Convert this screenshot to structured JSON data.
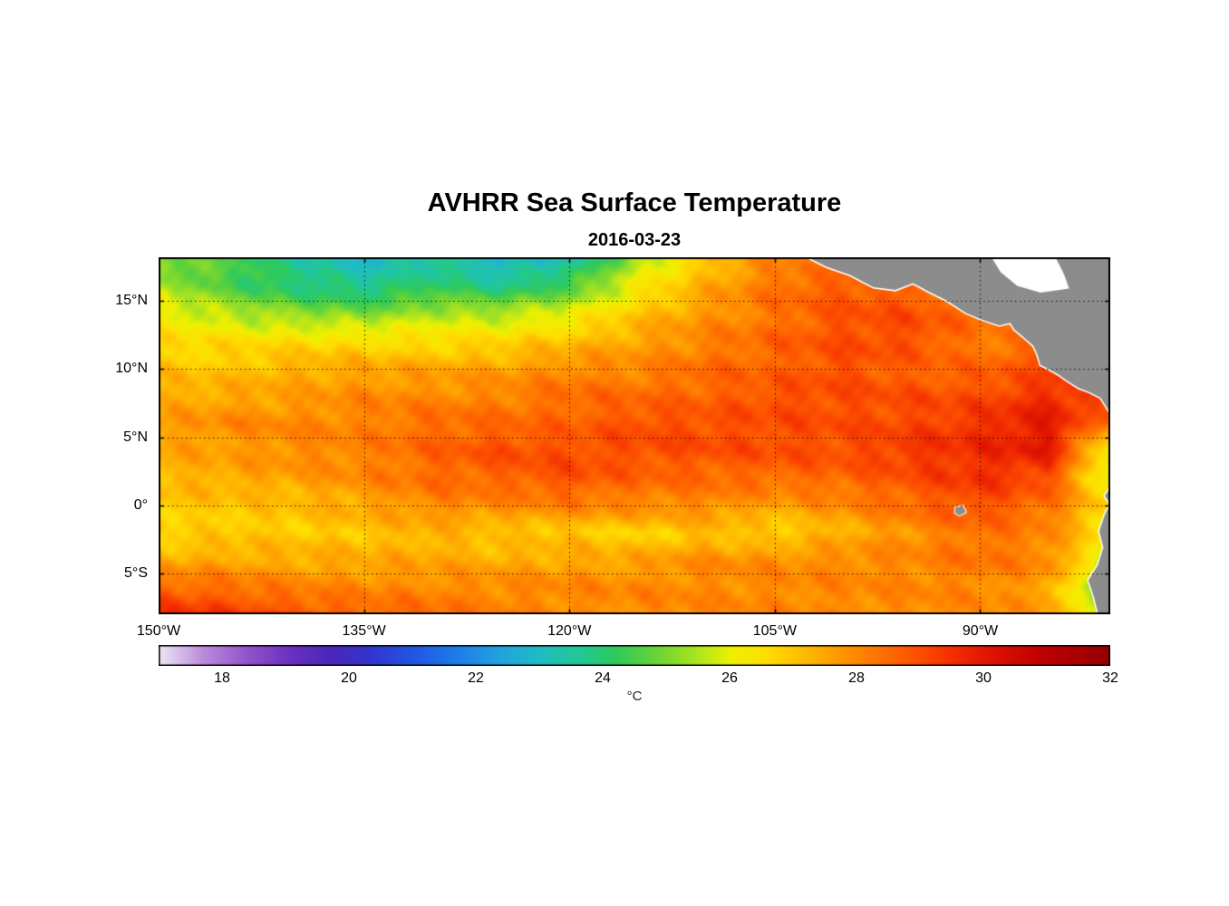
{
  "title": "AVHRR Sea Surface Temperature",
  "subtitle": "2016-03-23",
  "colorbar": {
    "label": "°C",
    "range": [
      17,
      32
    ],
    "ticks": [
      18,
      20,
      22,
      24,
      26,
      28,
      30,
      32
    ]
  },
  "axes": {
    "x_ticks": [
      {
        "value": -150,
        "label": "150°W"
      },
      {
        "value": -135,
        "label": "135°W"
      },
      {
        "value": -120,
        "label": "120°W"
      },
      {
        "value": -105,
        "label": "105°W"
      },
      {
        "value": -90,
        "label": "90°W"
      }
    ],
    "y_ticks": [
      {
        "value": 15,
        "label": "15°N"
      },
      {
        "value": 10,
        "label": "10°N"
      },
      {
        "value": 5,
        "label": "5°N"
      },
      {
        "value": 0,
        "label": "0°"
      },
      {
        "value": -5,
        "label": "5°S"
      }
    ]
  },
  "chart_data": {
    "type": "heatmap",
    "title": "AVHRR Sea Surface Temperature",
    "subtitle": "2016-03-23",
    "units": "°C",
    "extent": {
      "lon": [
        -150,
        -80.5
      ],
      "lat": [
        -8,
        18.2
      ]
    },
    "lon": [
      -150,
      -145,
      -140,
      -135,
      -130,
      -125,
      -120,
      -115,
      -110,
      -105,
      -100,
      -95,
      -90,
      -85,
      -80
    ],
    "lat": [
      18,
      16,
      14,
      12,
      10,
      8,
      6,
      4,
      2,
      0,
      -2,
      -4,
      -6,
      -8
    ],
    "sst_c": [
      [
        25.0,
        24.5,
        23.6,
        23.0,
        23.6,
        22.8,
        23.2,
        25.5,
        27.0,
        28.0,
        28.3,
        28.3,
        28.3,
        28.2,
        28.0
      ],
      [
        25.6,
        24.6,
        24.0,
        23.6,
        24.2,
        23.8,
        24.6,
        26.2,
        27.4,
        28.4,
        28.8,
        28.6,
        28.3,
        28.2,
        28.0
      ],
      [
        26.2,
        25.6,
        25.2,
        25.1,
        25.6,
        25.6,
        26.0,
        27.0,
        27.8,
        28.3,
        28.9,
        29.0,
        28.4,
        28.0,
        27.6
      ],
      [
        26.6,
        26.6,
        26.6,
        26.6,
        26.6,
        26.7,
        27.1,
        27.6,
        28.1,
        28.6,
        29.0,
        29.0,
        28.2,
        28.5,
        28.0
      ],
      [
        27.0,
        27.0,
        27.4,
        27.5,
        27.5,
        27.6,
        28.0,
        28.0,
        28.5,
        28.6,
        29.0,
        28.6,
        28.6,
        29.0,
        28.5
      ],
      [
        27.4,
        27.5,
        27.6,
        28.0,
        28.0,
        28.1,
        28.5,
        28.5,
        28.6,
        29.0,
        29.0,
        29.0,
        29.0,
        29.6,
        29.2
      ],
      [
        27.6,
        28.0,
        28.0,
        28.1,
        28.5,
        28.5,
        28.6,
        29.0,
        29.0,
        29.0,
        29.0,
        29.1,
        29.5,
        30.0,
        28.0
      ],
      [
        27.5,
        27.6,
        28.0,
        28.1,
        28.6,
        29.0,
        29.0,
        29.0,
        29.0,
        29.0,
        29.0,
        29.4,
        29.6,
        30.0,
        25.5
      ],
      [
        27.2,
        27.5,
        27.6,
        28.0,
        28.5,
        28.6,
        29.0,
        28.6,
        28.5,
        28.5,
        28.6,
        29.0,
        29.5,
        29.0,
        25.5
      ],
      [
        27.0,
        27.0,
        27.1,
        27.5,
        28.0,
        28.0,
        28.1,
        28.0,
        28.0,
        27.6,
        28.0,
        28.5,
        29.0,
        28.4,
        26.5
      ],
      [
        26.6,
        26.9,
        26.9,
        27.0,
        27.3,
        26.9,
        27.0,
        26.7,
        27.1,
        26.7,
        27.3,
        27.9,
        28.4,
        28.0,
        26.0
      ],
      [
        27.4,
        27.5,
        27.4,
        27.4,
        27.5,
        27.4,
        27.5,
        27.5,
        27.9,
        27.9,
        28.0,
        28.0,
        28.4,
        28.0,
        25.5
      ],
      [
        28.6,
        28.4,
        28.1,
        28.0,
        28.0,
        28.0,
        28.0,
        28.0,
        28.0,
        28.0,
        28.0,
        28.0,
        28.0,
        27.6,
        23.8
      ],
      [
        29.6,
        29.4,
        29.0,
        28.6,
        28.5,
        28.1,
        28.0,
        28.0,
        28.0,
        28.0,
        28.0,
        28.0,
        28.0,
        27.6,
        24.8
      ]
    ],
    "colormap_stops": [
      [
        17.0,
        "#EDE8F7"
      ],
      [
        17.7,
        "#BC8BDB"
      ],
      [
        18.4,
        "#9253CC"
      ],
      [
        19.1,
        "#6A2FBE"
      ],
      [
        19.7,
        "#4A28B8"
      ],
      [
        20.3,
        "#3333CC"
      ],
      [
        21.0,
        "#2255E0"
      ],
      [
        21.7,
        "#1E7CE8"
      ],
      [
        22.3,
        "#219FE0"
      ],
      [
        23.0,
        "#1FBCC4"
      ],
      [
        23.6,
        "#21C897"
      ],
      [
        24.2,
        "#2EC95E"
      ],
      [
        24.8,
        "#63D338"
      ],
      [
        25.4,
        "#A2E224"
      ],
      [
        26.0,
        "#EDF000"
      ],
      [
        26.6,
        "#FFDE00"
      ],
      [
        27.2,
        "#FFB900"
      ],
      [
        27.8,
        "#FF9400"
      ],
      [
        28.4,
        "#FF7000"
      ],
      [
        29.0,
        "#FC4D00"
      ],
      [
        29.6,
        "#F02A00"
      ],
      [
        30.2,
        "#DC1000"
      ],
      [
        30.9,
        "#C00000"
      ],
      [
        31.5,
        "#A80000"
      ],
      [
        32.0,
        "#8F0000"
      ]
    ],
    "land_color": "#8C8C8C",
    "land_polygons": {
      "central_america": [
        [
          -103.0,
          18.4
        ],
        [
          -101.2,
          17.5
        ],
        [
          -99.5,
          16.9
        ],
        [
          -97.8,
          16.0
        ],
        [
          -96.2,
          15.8
        ],
        [
          -94.9,
          16.3
        ],
        [
          -93.8,
          15.7
        ],
        [
          -92.4,
          15.0
        ],
        [
          -91.0,
          14.1
        ],
        [
          -89.8,
          13.6
        ],
        [
          -88.6,
          13.2
        ],
        [
          -87.8,
          13.4
        ],
        [
          -87.5,
          12.9
        ],
        [
          -86.9,
          12.4
        ],
        [
          -86.1,
          11.7
        ],
        [
          -85.8,
          11.0
        ],
        [
          -85.6,
          10.3
        ],
        [
          -85.0,
          10.0
        ],
        [
          -84.3,
          9.6
        ],
        [
          -83.6,
          9.1
        ],
        [
          -82.8,
          8.6
        ],
        [
          -82.0,
          8.3
        ],
        [
          -81.2,
          7.9
        ],
        [
          -80.7,
          7.1
        ],
        [
          -80.3,
          6.5
        ],
        [
          -79.9,
          7.6
        ],
        [
          -79.5,
          8.7
        ],
        [
          -79.1,
          8.3
        ],
        [
          -78.6,
          7.4
        ],
        [
          -78.2,
          6.8
        ],
        [
          -78.0,
          18.4
        ]
      ],
      "south_america": [
        [
          -80.5,
          1.3
        ],
        [
          -80.9,
          0.7
        ],
        [
          -80.5,
          0.1
        ],
        [
          -80.9,
          -0.7
        ],
        [
          -81.3,
          -1.9
        ],
        [
          -81.0,
          -3.1
        ],
        [
          -81.4,
          -4.4
        ],
        [
          -82.1,
          -5.5
        ],
        [
          -81.7,
          -6.7
        ],
        [
          -81.3,
          -8.3
        ],
        [
          -77.5,
          -8.3
        ],
        [
          -77.5,
          1.3
        ]
      ],
      "galapagos": [
        [
          -91.8,
          -0.15
        ],
        [
          -91.25,
          -0.05
        ],
        [
          -91.05,
          -0.5
        ],
        [
          -91.5,
          -0.75
        ],
        [
          -91.85,
          -0.55
        ]
      ]
    },
    "masked_regions": {
      "caribbean": [
        [
          -89.3,
          18.4
        ],
        [
          -84.6,
          18.4
        ],
        [
          -83.9,
          17.0
        ],
        [
          -83.5,
          15.9
        ],
        [
          -85.6,
          15.6
        ],
        [
          -87.3,
          16.1
        ],
        [
          -88.5,
          17.1
        ]
      ]
    }
  }
}
